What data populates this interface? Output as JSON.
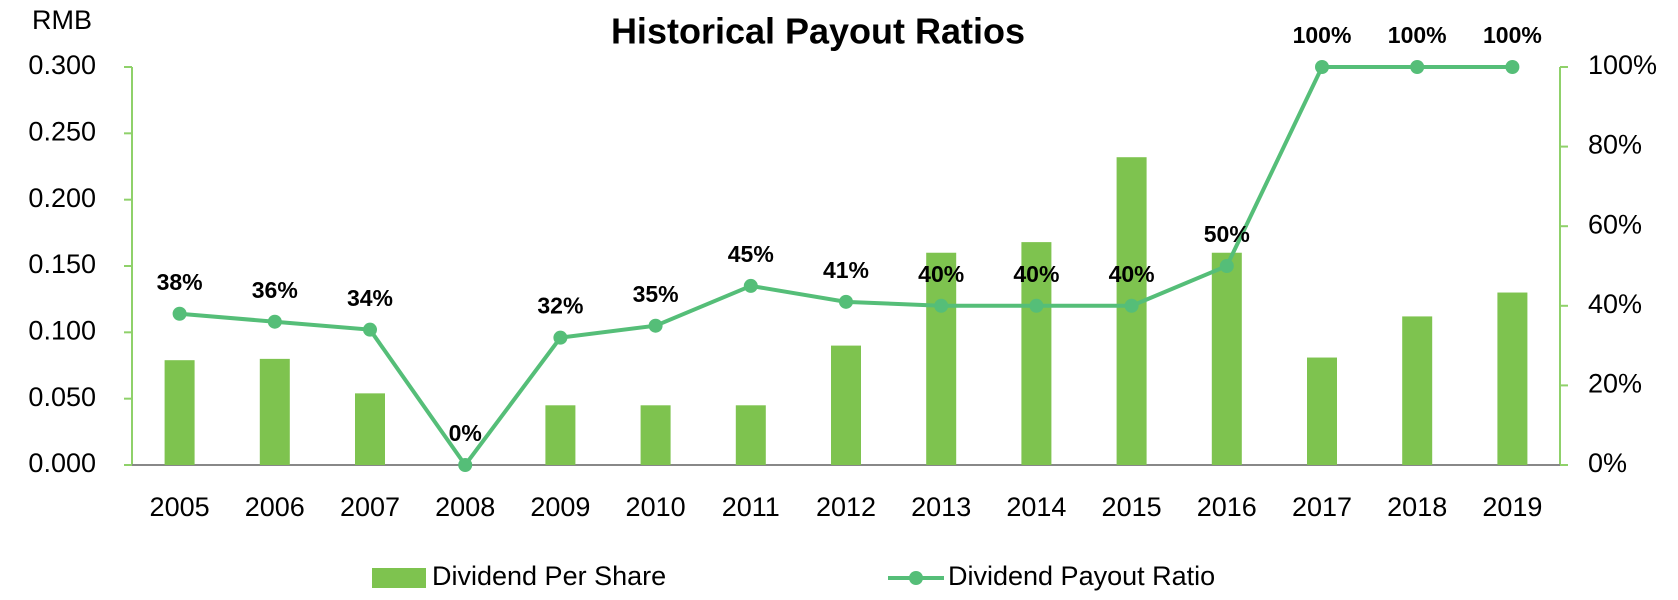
{
  "chart_data": {
    "type": "bar_line",
    "title": "Historical Payout Ratios",
    "y_axis_label": "RMB",
    "categories": [
      "2005",
      "2006",
      "2007",
      "2008",
      "2009",
      "2010",
      "2011",
      "2012",
      "2013",
      "2014",
      "2015",
      "2016",
      "2017",
      "2018",
      "2019"
    ],
    "series": [
      {
        "name": "Dividend Per Share",
        "type": "bar",
        "color": "#7ec34f",
        "values": [
          0.079,
          0.08,
          0.054,
          0,
          0.045,
          0.045,
          0.045,
          0.09,
          0.16,
          0.168,
          0.232,
          0.16,
          0.081,
          0.112,
          0.13
        ]
      },
      {
        "name": "Dividend Payout Ratio",
        "type": "line",
        "axis": "y2",
        "color": "#55be78",
        "values": [
          38,
          36,
          34,
          0,
          32,
          35,
          45,
          41,
          40,
          40,
          40,
          50,
          100,
          100,
          100
        ],
        "value_labels": [
          "38%",
          "36%",
          "34%",
          "0%",
          "32%",
          "35%",
          "45%",
          "41%",
          "40%",
          "40%",
          "40%",
          "50%",
          "100%",
          "100%",
          "100%"
        ]
      }
    ],
    "ylim": [
      0,
      0.3
    ],
    "yticks": [
      {
        "value": 0,
        "label": "0.000"
      },
      {
        "value": 0.05,
        "label": "0.050"
      },
      {
        "value": 0.1,
        "label": "0.100"
      },
      {
        "value": 0.15,
        "label": "0.150"
      },
      {
        "value": 0.2,
        "label": "0.200"
      },
      {
        "value": 0.25,
        "label": "0.250"
      },
      {
        "value": 0.3,
        "label": "0.300"
      }
    ],
    "y2lim": [
      0,
      100
    ],
    "y2ticks": [
      {
        "value": 0,
        "label": "0%"
      },
      {
        "value": 20,
        "label": "20%"
      },
      {
        "value": 40,
        "label": "40%"
      },
      {
        "value": 60,
        "label": "60%"
      },
      {
        "value": 80,
        "label": "80%"
      },
      {
        "value": 100,
        "label": "100%"
      }
    ],
    "legend": "bottom"
  }
}
